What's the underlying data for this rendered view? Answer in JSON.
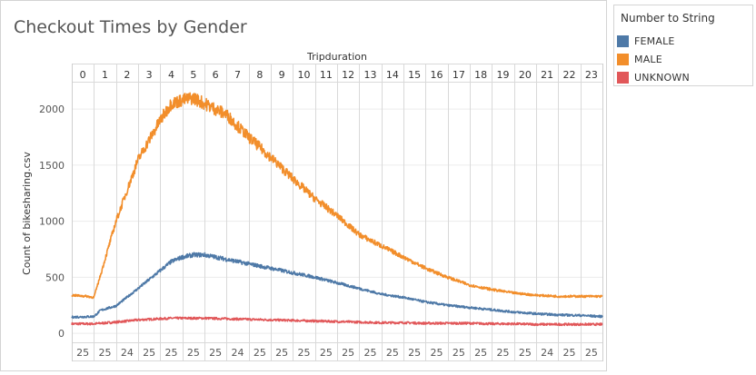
{
  "title": "Checkout Times by Gender",
  "legend": {
    "title": "Number to String",
    "items": [
      {
        "label": "FEMALE",
        "color": "#4e79a7"
      },
      {
        "label": "MALE",
        "color": "#f28e2b"
      },
      {
        "label": "UNKNOWN",
        "color": "#e15759"
      }
    ]
  },
  "chart_data": {
    "type": "line",
    "title": "Checkout Times by Gender",
    "column_header": "Tripduration",
    "ylabel": "Count of bikesharing.csv",
    "x_panels": [
      "0",
      "1",
      "2",
      "3",
      "4",
      "5",
      "6",
      "7",
      "8",
      "9",
      "10",
      "11",
      "12",
      "13",
      "14",
      "15",
      "16",
      "17",
      "18",
      "19",
      "20",
      "21",
      "22",
      "23"
    ],
    "x_bottom_labels": [
      "25",
      "25",
      "24",
      "25",
      "25",
      "25",
      "25",
      "24",
      "25",
      "25",
      "25",
      "25",
      "25",
      "25",
      "25",
      "25",
      "25",
      "25",
      "25",
      "25",
      "25",
      "24",
      "25",
      "25"
    ],
    "ylim": [
      -80,
      2220
    ],
    "yticks": [
      0,
      500,
      1000,
      1500,
      2000
    ],
    "grid": true,
    "legend_position": "right",
    "x_positions": [
      0,
      0.7,
      1,
      1.3,
      2,
      3,
      4,
      4.5,
      5,
      5.5,
      6,
      7,
      8,
      9,
      10,
      11,
      12,
      13,
      14,
      15,
      16,
      17,
      18,
      19,
      20,
      21,
      22,
      23,
      24
    ],
    "series": [
      {
        "name": "FEMALE",
        "color": "#4e79a7",
        "values": [
          145,
          148,
          150,
          205,
          245,
          400,
          560,
          640,
          680,
          700,
          700,
          660,
          620,
          580,
          540,
          500,
          450,
          400,
          350,
          320,
          280,
          250,
          230,
          210,
          190,
          175,
          165,
          160,
          150
        ]
      },
      {
        "name": "MALE",
        "color": "#f28e2b",
        "values": [
          340,
          330,
          320,
          520,
          1000,
          1550,
          1900,
          2050,
          2080,
          2100,
          2050,
          1950,
          1750,
          1570,
          1380,
          1200,
          1050,
          880,
          780,
          680,
          580,
          500,
          430,
          390,
          360,
          340,
          330,
          330,
          330
        ]
      },
      {
        "name": "UNKNOWN",
        "color": "#e15759",
        "values": [
          85,
          85,
          85,
          90,
          100,
          120,
          130,
          135,
          135,
          135,
          135,
          130,
          125,
          120,
          115,
          110,
          105,
          100,
          95,
          95,
          90,
          90,
          90,
          85,
          85,
          80,
          80,
          80,
          80
        ]
      }
    ]
  }
}
